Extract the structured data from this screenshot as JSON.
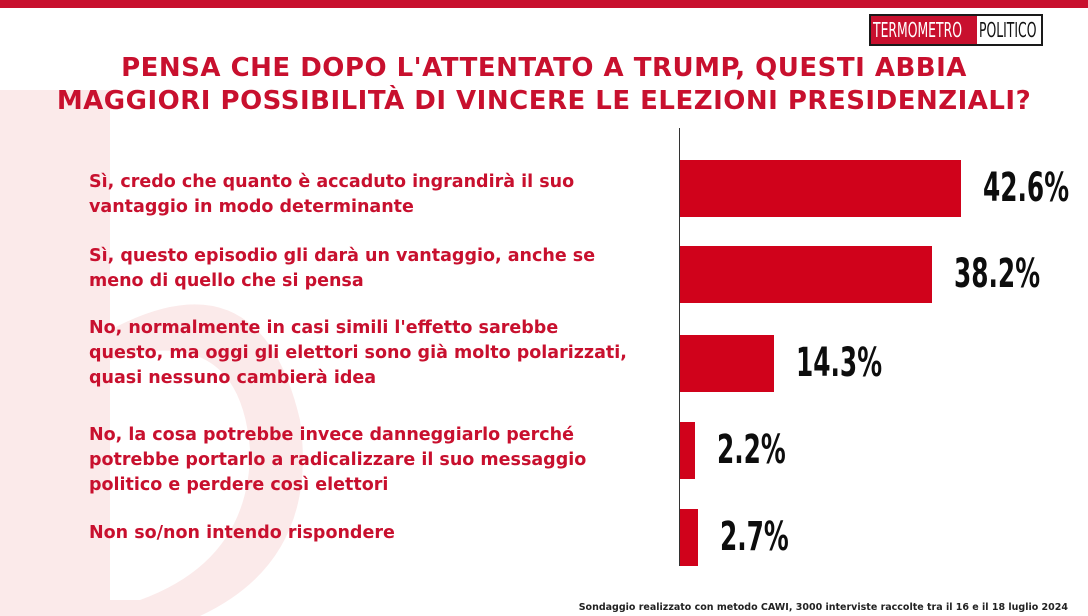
{
  "brand": {
    "part1": "TERMOMETRO",
    "part2": "POLITICO",
    "accent": "#c8102e"
  },
  "title": {
    "line1": "PENSA CHE DOPO L'ATTENTATO A TRUMP, QUESTI ABBIA",
    "line2": "MAGGIORI POSSIBILITÀ DI VINCERE LE ELEZIONI PRESIDENZIALI?"
  },
  "footer": "Sondaggio realizzato con metodo CAWI, 3000 interviste raccolte tra il 16 e il 18 luglio 2024",
  "chart_data": {
    "type": "bar",
    "orientation": "horizontal",
    "categories": [
      "Sì, credo che quanto è accaduto ingrandirà  il suo vantaggio in modo determinante",
      "Sì, questo episodio gli darà  un vantaggio, anche se meno di quello che si pensa",
      "No, normalmente in casi simili l'effetto sarebbe questo, ma oggi gli elettori sono già molto polarizzati, quasi nessuno cambierà idea",
      "No, la cosa potrebbe invece danneggiarlo perché potrebbe portarlo a radicalizzare il suo messaggio politico e perdere così elettori",
      "Non so/non intendo rispondere"
    ],
    "label_lines": [
      [
        "Sì, credo che quanto è accaduto ingrandirà  il suo",
        "vantaggio in modo determinante"
      ],
      [
        "Sì, questo episodio gli darà  un vantaggio, anche se",
        "meno di quello che si pensa"
      ],
      [
        "No, normalmente in casi simili l'effetto sarebbe",
        "questo, ma oggi gli elettori sono già molto polarizzati,",
        "quasi nessuno cambierà idea"
      ],
      [
        "No, la cosa potrebbe invece danneggiarlo perché",
        "potrebbe portarlo a radicalizzare il suo messaggio",
        "politico e perdere così elettori"
      ],
      [
        "Non so/non intendo rispondere"
      ]
    ],
    "values": [
      42.6,
      38.2,
      14.3,
      2.2,
      2.7
    ],
    "value_labels": [
      "42.6%",
      "38.2%",
      "14.3%",
      "2.2%",
      "2.7%"
    ],
    "unit": "%",
    "bar_color": "#d0021b",
    "grid": false,
    "legend": "none"
  }
}
